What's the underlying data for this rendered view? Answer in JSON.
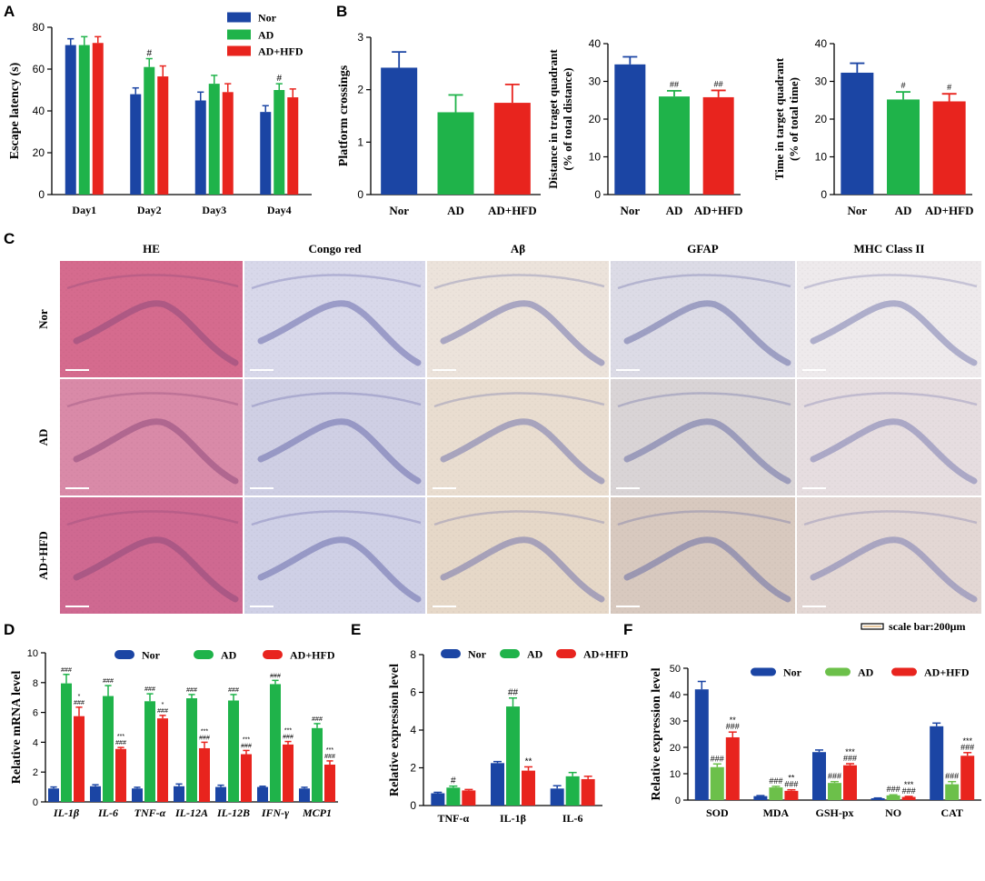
{
  "panels": {
    "A": "A",
    "B": "B",
    "C": "C",
    "D": "D",
    "E": "E",
    "F": "F"
  },
  "colors": {
    "nor": "#1b45a4",
    "ad": "#1fb34a",
    "adhfd": "#e8241e",
    "adF": "#6cc04a"
  },
  "series_names": [
    "Nor",
    "AD",
    "AD+HFD"
  ],
  "chart_data": [
    {
      "id": "A",
      "type": "bar",
      "ylabel": "Escape latency (s)",
      "ylim": [
        0,
        80
      ],
      "yticks": [
        0,
        20,
        40,
        60,
        80
      ],
      "categories": [
        "Day1",
        "Day2",
        "Day3",
        "Day4"
      ],
      "series": [
        {
          "name": "Nor",
          "values": [
            71.5,
            48,
            45,
            39.5
          ],
          "errors": [
            3,
            3,
            4,
            3
          ]
        },
        {
          "name": "AD",
          "values": [
            71.5,
            61,
            53,
            50
          ],
          "errors": [
            4,
            4,
            4,
            3
          ]
        },
        {
          "name": "AD+HFD",
          "values": [
            72.5,
            56.5,
            49,
            46.5
          ],
          "errors": [
            3,
            5,
            4,
            4
          ]
        }
      ],
      "annotations": [
        {
          "category": 1,
          "series": 1,
          "text": "#"
        },
        {
          "category": 3,
          "series": 1,
          "text": "#"
        }
      ]
    },
    {
      "id": "B1",
      "type": "bar",
      "ylabel": "Platform crossings",
      "ylim": [
        0,
        3
      ],
      "yticks": [
        0,
        1,
        2,
        3
      ],
      "categories": [
        "Nor",
        "AD",
        "AD+HFD"
      ],
      "values": [
        2.42,
        1.57,
        1.75
      ],
      "errors": [
        0.3,
        0.33,
        0.35
      ],
      "annotations": [
        "",
        "",
        ""
      ]
    },
    {
      "id": "B2",
      "type": "bar",
      "ylabel": "Distance in traget quadrant",
      "ylabel2": "(% of total distance)",
      "ylim": [
        0,
        40
      ],
      "yticks": [
        0,
        10,
        20,
        30,
        40
      ],
      "categories": [
        "Nor",
        "AD",
        "AD+HFD"
      ],
      "values": [
        34.5,
        26,
        25.8
      ],
      "errors": [
        2,
        1.5,
        1.8
      ],
      "annotations": [
        "",
        "##",
        "##"
      ]
    },
    {
      "id": "B3",
      "type": "bar",
      "ylabel": "Time in target quadrant",
      "ylabel2": "(% of total time)",
      "ylim": [
        0,
        40
      ],
      "yticks": [
        0,
        10,
        20,
        30,
        40
      ],
      "categories": [
        "Nor",
        "AD",
        "AD+HFD"
      ],
      "values": [
        32.3,
        25.2,
        24.7
      ],
      "errors": [
        2.5,
        2,
        2
      ],
      "annotations": [
        "",
        "#",
        "#"
      ]
    },
    {
      "id": "D",
      "type": "bar",
      "ylabel": "Relative mRNA level",
      "ylim": [
        0,
        10
      ],
      "yticks": [
        0,
        2,
        4,
        6,
        8,
        10
      ],
      "categories": [
        "IL-1β",
        "IL-6",
        "TNF-α",
        "IL-12A",
        "IL-12B",
        "IFN-γ",
        "MCP1"
      ],
      "series": [
        {
          "name": "Nor",
          "values": [
            0.9,
            1.05,
            0.9,
            1.05,
            1,
            1,
            0.9
          ],
          "errors": [
            0.1,
            0.1,
            0.08,
            0.15,
            0.12,
            0.05,
            0.08
          ]
        },
        {
          "name": "AD",
          "values": [
            7.95,
            7.1,
            6.75,
            6.95,
            6.8,
            7.9,
            4.95
          ],
          "errors": [
            0.6,
            0.7,
            0.5,
            0.25,
            0.4,
            0.25,
            0.3
          ]
        },
        {
          "name": "AD+HFD",
          "values": [
            5.75,
            3.55,
            5.6,
            3.6,
            3.2,
            3.85,
            2.5
          ],
          "errors": [
            0.6,
            0.1,
            0.2,
            0.4,
            0.25,
            0.2,
            0.25
          ]
        }
      ],
      "annotations": [
        {
          "category": 0,
          "series": 1,
          "lines": [
            "###"
          ]
        },
        {
          "category": 0,
          "series": 2,
          "lines": [
            "*",
            "###"
          ]
        },
        {
          "category": 1,
          "series": 1,
          "lines": [
            "###"
          ]
        },
        {
          "category": 1,
          "series": 2,
          "lines": [
            "***",
            "###"
          ]
        },
        {
          "category": 2,
          "series": 1,
          "lines": [
            "###"
          ]
        },
        {
          "category": 2,
          "series": 2,
          "lines": [
            "*",
            "###"
          ]
        },
        {
          "category": 3,
          "series": 1,
          "lines": [
            "###"
          ]
        },
        {
          "category": 3,
          "series": 2,
          "lines": [
            "***",
            "###"
          ]
        },
        {
          "category": 4,
          "series": 1,
          "lines": [
            "###"
          ]
        },
        {
          "category": 4,
          "series": 2,
          "lines": [
            "***",
            "###"
          ]
        },
        {
          "category": 5,
          "series": 1,
          "lines": [
            "###"
          ]
        },
        {
          "category": 5,
          "series": 2,
          "lines": [
            "***",
            "###"
          ]
        },
        {
          "category": 6,
          "series": 1,
          "lines": [
            "###"
          ]
        },
        {
          "category": 6,
          "series": 2,
          "lines": [
            "***",
            "###"
          ]
        }
      ]
    },
    {
      "id": "E",
      "type": "bar",
      "ylabel": "Relative expression level",
      "ylim": [
        0,
        8
      ],
      "yticks": [
        0,
        2,
        4,
        6,
        8
      ],
      "categories": [
        "TNF-α",
        "IL-1β",
        "IL-6"
      ],
      "series": [
        {
          "name": "Nor",
          "values": [
            0.65,
            2.25,
            0.9
          ],
          "errors": [
            0.05,
            0.08,
            0.15
          ]
        },
        {
          "name": "AD",
          "values": [
            0.95,
            5.25,
            1.55
          ],
          "errors": [
            0.08,
            0.45,
            0.2
          ]
        },
        {
          "name": "AD+HFD",
          "values": [
            0.8,
            1.85,
            1.4
          ],
          "errors": [
            0.05,
            0.2,
            0.15
          ]
        }
      ],
      "annotations": [
        {
          "category": 0,
          "series": 1,
          "lines": [
            "#"
          ]
        },
        {
          "category": 1,
          "series": 1,
          "lines": [
            "##"
          ]
        },
        {
          "category": 1,
          "series": 2,
          "lines": [
            "**"
          ]
        }
      ]
    },
    {
      "id": "F",
      "type": "bar",
      "ylabel": "Relative expression level",
      "ylim": [
        0,
        50
      ],
      "yticks": [
        0,
        10,
        20,
        30,
        40,
        50
      ],
      "categories": [
        "SOD",
        "MDA",
        "GSH-px",
        "NO",
        "CAT"
      ],
      "series": [
        {
          "name": "Nor",
          "values": [
            42,
            1.5,
            18.2,
            0.7,
            28
          ],
          "errors": [
            3,
            0.2,
            0.8,
            0.1,
            1.2
          ]
        },
        {
          "name": "AD",
          "values": [
            12.5,
            4.8,
            6.5,
            1.8,
            6
          ],
          "errors": [
            1.2,
            0.4,
            0.5,
            0.2,
            1
          ]
        },
        {
          "name": "AD+HFD",
          "values": [
            23.8,
            3.5,
            13.2,
            1.2,
            16.8
          ],
          "errors": [
            2,
            0.4,
            0.6,
            0.2,
            1.2
          ]
        }
      ],
      "annotations": [
        {
          "category": 0,
          "series": 1,
          "lines": [
            "###"
          ]
        },
        {
          "category": 0,
          "series": 2,
          "lines": [
            "**",
            "###"
          ]
        },
        {
          "category": 1,
          "series": 1,
          "lines": [
            "###"
          ]
        },
        {
          "category": 1,
          "series": 2,
          "lines": [
            "**",
            "###"
          ]
        },
        {
          "category": 2,
          "series": 1,
          "lines": [
            "###"
          ]
        },
        {
          "category": 2,
          "series": 2,
          "lines": [
            "***",
            "###"
          ]
        },
        {
          "category": 3,
          "series": 1,
          "lines": [
            "###"
          ]
        },
        {
          "category": 3,
          "series": 2,
          "lines": [
            "***",
            "###"
          ]
        },
        {
          "category": 4,
          "series": 1,
          "lines": [
            "###"
          ]
        },
        {
          "category": 4,
          "series": 2,
          "lines": [
            "***",
            "###"
          ]
        }
      ]
    }
  ],
  "histology": {
    "columns": [
      "HE",
      "Congo red",
      "Aβ",
      "GFAP",
      "MHC Class II"
    ],
    "rows": [
      "Nor",
      "AD",
      "AD+HFD"
    ],
    "scale_bar": "scale bar:200μm"
  }
}
